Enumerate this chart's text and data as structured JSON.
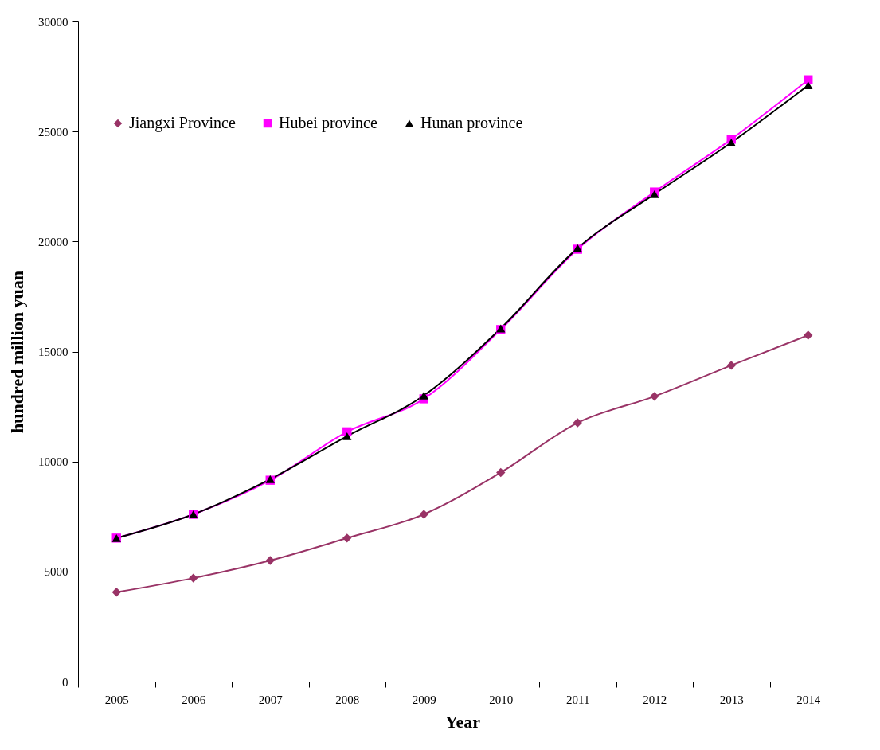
{
  "chart_data": {
    "type": "line",
    "xlabel": "Year",
    "ylabel": "hundred million yuan",
    "categories": [
      "2005",
      "2006",
      "2007",
      "2008",
      "2009",
      "2010",
      "2011",
      "2012",
      "2013",
      "2014"
    ],
    "series": [
      {
        "name": "Jiangxi Province",
        "color": "#993366",
        "marker": "diamond",
        "values": [
          4060,
          4700,
          5500,
          6520,
          7600,
          9500,
          11760,
          12960,
          14370,
          15740
        ]
      },
      {
        "name": "Hubei province",
        "color": "#ff00ff",
        "marker": "square",
        "values": [
          6520,
          7600,
          9150,
          11350,
          12850,
          16000,
          19650,
          22250,
          24650,
          27350
        ]
      },
      {
        "name": "Hunan province",
        "color": "#000000",
        "marker": "triangle",
        "values": [
          6520,
          7600,
          9200,
          11150,
          13000,
          16050,
          19700,
          22150,
          24500,
          27100
        ]
      }
    ],
    "ylim": [
      0,
      30000
    ],
    "yticks": [
      0,
      5000,
      10000,
      15000,
      20000,
      25000,
      30000
    ],
    "legend": "top left",
    "line_style": "solid",
    "grid": false
  }
}
